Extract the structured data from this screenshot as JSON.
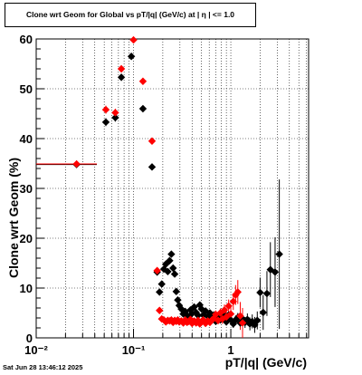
{
  "title": "Clone wrt Geom for Global vs pT/|q| (GeV/c) at |  η  | <= 1.0",
  "footer": "Sat Jun 28 13:46:12 2025",
  "chart_data": {
    "type": "scatter",
    "xlabel": "pT/|q| (GeV/c)",
    "ylabel": "Clone wrt Geom (%)",
    "xscale": "log",
    "xlim": [
      0.01,
      6.3
    ],
    "ylim": [
      0,
      60
    ],
    "x_tick_labels": [
      "10⁻²",
      "10⁻¹",
      "1"
    ],
    "y_tick_labels": [
      "0",
      "10",
      "20",
      "30",
      "40",
      "50",
      "60"
    ],
    "grid": true,
    "colors": {
      "black_series": "#000000",
      "red_series": "#ff0000"
    },
    "series": [
      {
        "color": "#000000",
        "points": [
          [
            0.026,
            34.8,
            0.016,
            0.7
          ],
          [
            0.052,
            43.3,
            0.004,
            0.8
          ],
          [
            0.065,
            44.2,
            0.003,
            0.8
          ],
          [
            0.075,
            52.3,
            0.003,
            0.7
          ],
          [
            0.095,
            56.5,
            0.004,
            0.6
          ],
          [
            0.125,
            46.0,
            0.004,
            0.6
          ],
          [
            0.155,
            34.3,
            0.004,
            0.6
          ],
          [
            0.175,
            13.2,
            0.004,
            0.6
          ],
          [
            0.185,
            9.2,
            0.003,
            0.6
          ],
          [
            0.195,
            10.8,
            0.003,
            0.6
          ],
          [
            0.205,
            13.8,
            0.003,
            0.6
          ],
          [
            0.215,
            14.8,
            0.003,
            0.6
          ],
          [
            0.225,
            13.3,
            0.003,
            0.6
          ],
          [
            0.235,
            15.5,
            0.003,
            0.6
          ],
          [
            0.245,
            16.8,
            0.003,
            0.6
          ],
          [
            0.255,
            14.0,
            0.003,
            0.6
          ],
          [
            0.265,
            12.8,
            0.003,
            0.6
          ],
          [
            0.275,
            9.3,
            0.003,
            0.6
          ],
          [
            0.285,
            7.6,
            0.003,
            0.6
          ],
          [
            0.295,
            6.5,
            0.003,
            0.6
          ],
          [
            0.31,
            5.8,
            0.003,
            0.6
          ],
          [
            0.325,
            4.8,
            0.003,
            0.6
          ],
          [
            0.34,
            5.3,
            0.003,
            0.6
          ],
          [
            0.355,
            4.5,
            0.003,
            0.6
          ],
          [
            0.37,
            4.2,
            0.003,
            0.6
          ],
          [
            0.385,
            5.6,
            0.003,
            0.6
          ],
          [
            0.4,
            4.9,
            0.003,
            0.6
          ],
          [
            0.42,
            6.2,
            0.003,
            0.6
          ],
          [
            0.44,
            5.1,
            0.003,
            0.6
          ],
          [
            0.46,
            4.5,
            0.003,
            0.6
          ],
          [
            0.48,
            6.6,
            0.003,
            0.6
          ],
          [
            0.5,
            5.8,
            0.003,
            0.6
          ],
          [
            0.52,
            4.6,
            0.003,
            0.6
          ],
          [
            0.55,
            5.4,
            0.003,
            0.6
          ],
          [
            0.58,
            4.3,
            0.003,
            0.6
          ],
          [
            0.61,
            5.0,
            0.003,
            0.6
          ],
          [
            0.64,
            3.8,
            0.003,
            0.6
          ],
          [
            0.67,
            4.6,
            0.003,
            0.6
          ],
          [
            0.7,
            3.3,
            0.003,
            0.6
          ],
          [
            0.74,
            4.0,
            0.003,
            0.6
          ],
          [
            0.78,
            3.6,
            0.003,
            0.6
          ],
          [
            0.82,
            5.0,
            0.003,
            0.6
          ],
          [
            0.86,
            4.3,
            0.003,
            0.6
          ],
          [
            0.9,
            3.2,
            0.003,
            0.7
          ],
          [
            0.95,
            4.6,
            0.003,
            0.7
          ],
          [
            1.0,
            3.6,
            0.003,
            0.8
          ],
          [
            1.06,
            2.8,
            0.004,
            0.8
          ],
          [
            1.12,
            3.6,
            0.004,
            0.9
          ],
          [
            1.18,
            4.1,
            0.004,
            0.9
          ],
          [
            1.25,
            3.0,
            0.004,
            1.0
          ],
          [
            1.32,
            3.8,
            0.004,
            1.0
          ],
          [
            1.4,
            3.1,
            0.004,
            1.1
          ],
          [
            1.48,
            3.7,
            0.004,
            1.2
          ],
          [
            1.57,
            2.8,
            0.005,
            1.3
          ],
          [
            1.66,
            3.3,
            0.005,
            1.4
          ],
          [
            1.76,
            2.6,
            0.005,
            1.6
          ],
          [
            1.87,
            3.5,
            0.006,
            1.8
          ],
          [
            2.0,
            9.1,
            0.06,
            3.0
          ],
          [
            2.15,
            5.1,
            0.07,
            3.5
          ],
          [
            2.35,
            8.9,
            0.08,
            4.5
          ],
          [
            2.55,
            13.7,
            0.09,
            5.5
          ],
          [
            2.85,
            13.2,
            0.1,
            7.0
          ],
          [
            3.15,
            16.8,
            0.12,
            15.0
          ]
        ]
      },
      {
        "color": "#ff0000",
        "points": [
          [
            0.026,
            34.9,
            0.016,
            0.7
          ],
          [
            0.052,
            45.8,
            0.004,
            0.8
          ],
          [
            0.065,
            45.2,
            0.003,
            0.8
          ],
          [
            0.075,
            54.0,
            0.003,
            0.7
          ],
          [
            0.1,
            59.8,
            0.004,
            0.6
          ],
          [
            0.125,
            51.5,
            0.004,
            0.6
          ],
          [
            0.155,
            39.5,
            0.004,
            0.6
          ],
          [
            0.175,
            13.5,
            0.004,
            0.6
          ],
          [
            0.185,
            5.5,
            0.003,
            0.6
          ],
          [
            0.195,
            3.8,
            0.003,
            0.6
          ],
          [
            0.205,
            3.6,
            0.003,
            0.6
          ],
          [
            0.215,
            3.2,
            0.003,
            0.6
          ],
          [
            0.225,
            3.5,
            0.003,
            0.6
          ],
          [
            0.235,
            3.4,
            0.003,
            0.6
          ],
          [
            0.245,
            3.6,
            0.003,
            0.6
          ],
          [
            0.255,
            3.1,
            0.003,
            0.6
          ],
          [
            0.265,
            3.5,
            0.003,
            0.6
          ],
          [
            0.275,
            3.3,
            0.003,
            0.6
          ],
          [
            0.285,
            3.6,
            0.003,
            0.6
          ],
          [
            0.295,
            3.2,
            0.003,
            0.6
          ],
          [
            0.31,
            3.4,
            0.003,
            0.6
          ],
          [
            0.325,
            3.0,
            0.003,
            0.6
          ],
          [
            0.34,
            3.6,
            0.003,
            0.6
          ],
          [
            0.355,
            3.1,
            0.003,
            0.6
          ],
          [
            0.37,
            3.3,
            0.003,
            0.6
          ],
          [
            0.385,
            3.7,
            0.003,
            0.6
          ],
          [
            0.4,
            2.9,
            0.003,
            0.6
          ],
          [
            0.42,
            3.4,
            0.003,
            0.6
          ],
          [
            0.44,
            3.0,
            0.003,
            0.6
          ],
          [
            0.46,
            3.5,
            0.003,
            0.6
          ],
          [
            0.48,
            2.8,
            0.003,
            0.6
          ],
          [
            0.5,
            3.3,
            0.003,
            0.6
          ],
          [
            0.52,
            3.6,
            0.003,
            0.6
          ],
          [
            0.55,
            2.9,
            0.003,
            0.6
          ],
          [
            0.58,
            3.4,
            0.003,
            0.6
          ],
          [
            0.61,
            3.1,
            0.003,
            0.7
          ],
          [
            0.64,
            3.6,
            0.003,
            0.7
          ],
          [
            0.67,
            3.9,
            0.003,
            0.7
          ],
          [
            0.7,
            4.7,
            0.003,
            0.8
          ],
          [
            0.74,
            3.5,
            0.003,
            0.8
          ],
          [
            0.78,
            5.0,
            0.003,
            0.9
          ],
          [
            0.82,
            3.8,
            0.003,
            1.0
          ],
          [
            0.86,
            5.6,
            0.003,
            1.1
          ],
          [
            0.9,
            4.2,
            0.003,
            1.2
          ],
          [
            0.95,
            6.4,
            0.003,
            1.3
          ],
          [
            1.0,
            4.8,
            0.003,
            1.5
          ],
          [
            1.06,
            7.3,
            0.004,
            1.7
          ],
          [
            1.12,
            8.6,
            0.004,
            2.0
          ],
          [
            1.18,
            9.2,
            0.004,
            2.4
          ],
          [
            1.25,
            4.4,
            0.004,
            2.8
          ],
          [
            1.32,
            3.0,
            0.004,
            3.0
          ]
        ]
      }
    ]
  }
}
